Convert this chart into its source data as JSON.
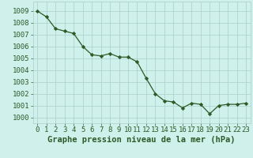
{
  "x": [
    0,
    1,
    2,
    3,
    4,
    5,
    6,
    7,
    8,
    9,
    10,
    11,
    12,
    13,
    14,
    15,
    16,
    17,
    18,
    19,
    20,
    21,
    22,
    23
  ],
  "y": [
    1009.0,
    1008.5,
    1007.5,
    1007.3,
    1007.1,
    1006.0,
    1005.3,
    1005.2,
    1005.4,
    1005.1,
    1005.1,
    1004.7,
    1003.3,
    1002.0,
    1001.4,
    1001.3,
    1000.8,
    1001.2,
    1001.1,
    1000.3,
    1001.0,
    1001.1,
    1001.1,
    1001.2
  ],
  "line_color": "#2d5a27",
  "marker_color": "#2d5a27",
  "bg_color": "#cff0eb",
  "grid_color": "#aacfc8",
  "xlabel": "Graphe pression niveau de la mer (hPa)",
  "xlabel_color": "#2d5a27",
  "tick_color": "#2d5a27",
  "ylim": [
    999.5,
    1009.8
  ],
  "yticks": [
    1000,
    1001,
    1002,
    1003,
    1004,
    1005,
    1006,
    1007,
    1008,
    1009
  ],
  "xticks": [
    0,
    1,
    2,
    3,
    4,
    5,
    6,
    7,
    8,
    9,
    10,
    11,
    12,
    13,
    14,
    15,
    16,
    17,
    18,
    19,
    20,
    21,
    22,
    23
  ],
  "font_size": 6.5,
  "xlabel_fontsize": 7.5
}
